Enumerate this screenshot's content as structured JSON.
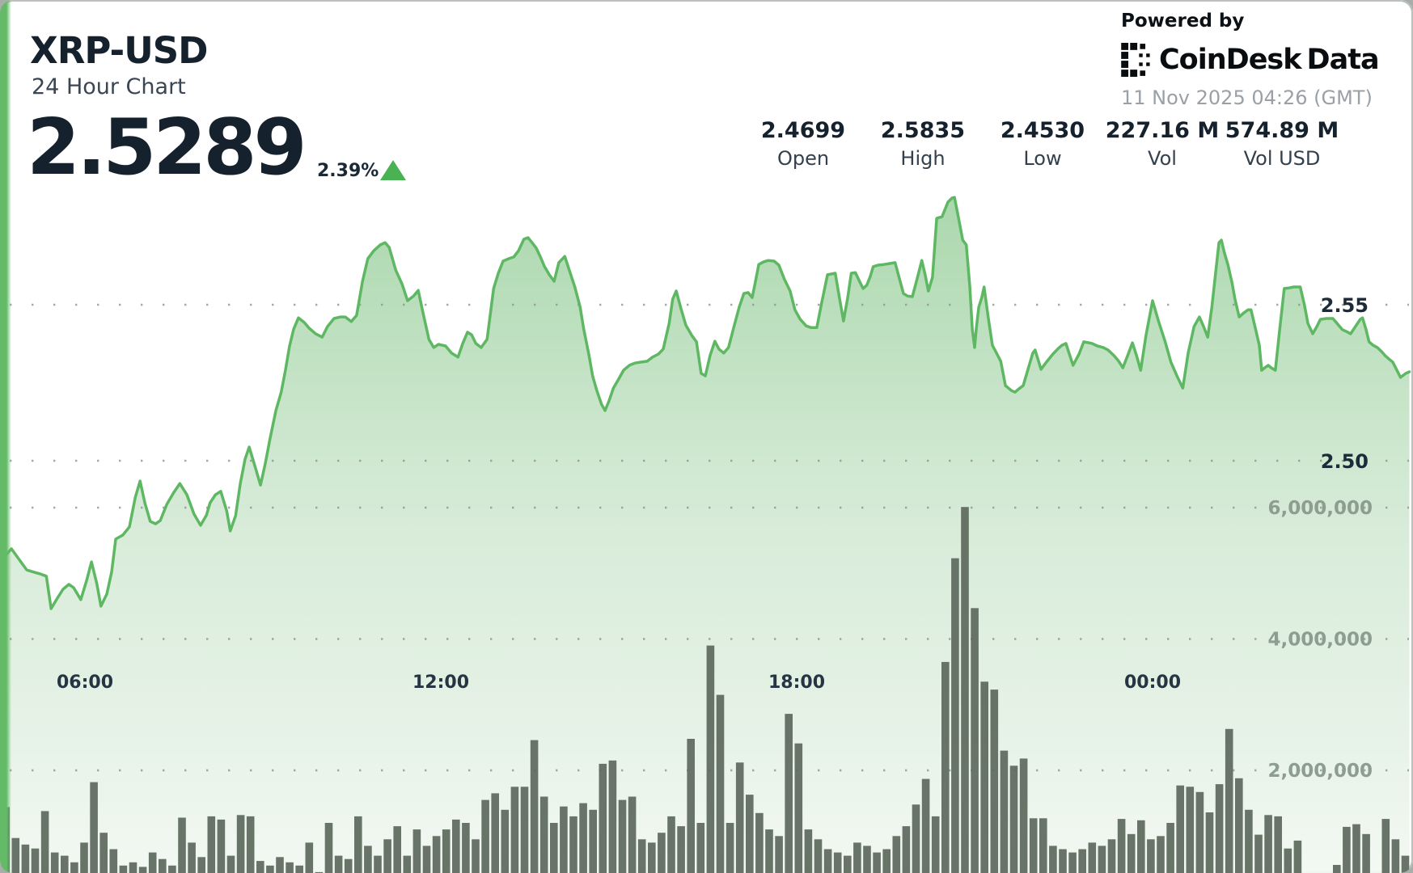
{
  "header": {
    "symbol": "XRP-USD",
    "subtitle": "24 Hour Chart",
    "price": "2.5289",
    "change_pct": "2.39%"
  },
  "stats": [
    {
      "value": "2.4699",
      "label": "Open"
    },
    {
      "value": "2.5835",
      "label": "High"
    },
    {
      "value": "2.4530",
      "label": "Low"
    },
    {
      "value": "227.16 M",
      "label": "Vol"
    },
    {
      "value": "574.89 M",
      "label": "Vol USD"
    }
  ],
  "powered_by": {
    "prefix": "Powered by",
    "brand": "CoinDesk",
    "brand2": "Data",
    "timestamp": "11 Nov 2025 04:26 (GMT)"
  },
  "colors": {
    "accent_green": "#63bb67",
    "line_green": "#5eb762",
    "fill_top": "#a0d3a3",
    "fill_mid": "#cfe7d0",
    "fill_bottom": "#f2f8f2",
    "bar_gray": "#5d685c",
    "price_tick": "#1d2b39",
    "vol_tick": "#8d9d8f",
    "time_tick": "#263544",
    "dot_grid": "#8b968b",
    "change_green": "#4bb254"
  },
  "chart_data": {
    "type": "area+bar",
    "title": "XRP-USD 24 Hour Chart",
    "price": {
      "type": "area",
      "x_unit": "hour_of_day_decimal_gmt",
      "open": 2.4699,
      "high": 2.5835,
      "low": 2.453,
      "last": 2.5289,
      "yticks": [
        2.55,
        2.5
      ],
      "points": [
        [
          4.68,
          2.47
        ],
        [
          4.76,
          2.4718
        ],
        [
          4.87,
          2.4689
        ],
        [
          5.02,
          2.465
        ],
        [
          5.14,
          2.4643
        ],
        [
          5.25,
          2.4637
        ],
        [
          5.35,
          2.463
        ],
        [
          5.43,
          2.4526
        ],
        [
          5.52,
          2.4555
        ],
        [
          5.63,
          2.4588
        ],
        [
          5.73,
          2.4604
        ],
        [
          5.81,
          2.4593
        ],
        [
          5.93,
          2.4555
        ],
        [
          6.03,
          2.4617
        ],
        [
          6.11,
          2.4676
        ],
        [
          6.2,
          2.4606
        ],
        [
          6.27,
          2.4534
        ],
        [
          6.37,
          2.4573
        ],
        [
          6.45,
          2.4643
        ],
        [
          6.52,
          2.4749
        ],
        [
          6.64,
          2.4762
        ],
        [
          6.75,
          2.4788
        ],
        [
          6.85,
          2.4883
        ],
        [
          6.93,
          2.4935
        ],
        [
          7.01,
          2.4865
        ],
        [
          7.1,
          2.4806
        ],
        [
          7.19,
          2.4798
        ],
        [
          7.27,
          2.4808
        ],
        [
          7.38,
          2.486
        ],
        [
          7.49,
          2.4896
        ],
        [
          7.6,
          2.4927
        ],
        [
          7.72,
          2.4891
        ],
        [
          7.84,
          2.4829
        ],
        [
          7.95,
          2.4793
        ],
        [
          8.05,
          2.4826
        ],
        [
          8.11,
          2.4865
        ],
        [
          8.2,
          2.4891
        ],
        [
          8.29,
          2.4902
        ],
        [
          8.39,
          2.4839
        ],
        [
          8.45,
          2.4775
        ],
        [
          8.54,
          2.4824
        ],
        [
          8.62,
          2.4927
        ],
        [
          8.7,
          2.5005
        ],
        [
          8.77,
          2.5044
        ],
        [
          8.86,
          2.4987
        ],
        [
          8.96,
          2.4922
        ],
        [
          9.04,
          2.499
        ],
        [
          9.12,
          2.507
        ],
        [
          9.22,
          2.5161
        ],
        [
          9.31,
          2.522
        ],
        [
          9.38,
          2.529
        ],
        [
          9.45,
          2.5368
        ],
        [
          9.52,
          2.5422
        ],
        [
          9.6,
          2.5458
        ],
        [
          9.7,
          2.5443
        ],
        [
          9.78,
          2.5425
        ],
        [
          9.89,
          2.5407
        ],
        [
          10.0,
          2.5396
        ],
        [
          10.09,
          2.543
        ],
        [
          10.2,
          2.5456
        ],
        [
          10.31,
          2.5461
        ],
        [
          10.39,
          2.5461
        ],
        [
          10.49,
          2.5446
        ],
        [
          10.58,
          2.5466
        ],
        [
          10.68,
          2.5575
        ],
        [
          10.77,
          2.5648
        ],
        [
          10.87,
          2.5673
        ],
        [
          10.98,
          2.5692
        ],
        [
          11.06,
          2.5699
        ],
        [
          11.13,
          2.5684
        ],
        [
          11.24,
          2.5611
        ],
        [
          11.35,
          2.5565
        ],
        [
          11.44,
          2.5513
        ],
        [
          11.54,
          2.5528
        ],
        [
          11.62,
          2.5546
        ],
        [
          11.71,
          2.5466
        ],
        [
          11.8,
          2.5389
        ],
        [
          11.88,
          2.5363
        ],
        [
          11.96,
          2.5373
        ],
        [
          12.08,
          2.5368
        ],
        [
          12.18,
          2.5345
        ],
        [
          12.29,
          2.5332
        ],
        [
          12.37,
          2.5376
        ],
        [
          12.45,
          2.5412
        ],
        [
          12.52,
          2.5404
        ],
        [
          12.59,
          2.5376
        ],
        [
          12.68,
          2.5363
        ],
        [
          12.78,
          2.5389
        ],
        [
          12.89,
          2.5552
        ],
        [
          12.97,
          2.5601
        ],
        [
          13.05,
          2.564
        ],
        [
          13.15,
          2.5648
        ],
        [
          13.23,
          2.5653
        ],
        [
          13.31,
          2.5673
        ],
        [
          13.4,
          2.571
        ],
        [
          13.47,
          2.5715
        ],
        [
          13.54,
          2.5699
        ],
        [
          13.61,
          2.5681
        ],
        [
          13.68,
          2.5653
        ],
        [
          13.75,
          2.5622
        ],
        [
          13.83,
          2.5596
        ],
        [
          13.91,
          2.5575
        ],
        [
          13.99,
          2.5635
        ],
        [
          14.09,
          2.5655
        ],
        [
          14.17,
          2.5609
        ],
        [
          14.26,
          2.5557
        ],
        [
          14.35,
          2.5492
        ],
        [
          14.41,
          2.5422
        ],
        [
          14.5,
          2.5337
        ],
        [
          14.56,
          2.5272
        ],
        [
          14.63,
          2.5225
        ],
        [
          14.71,
          2.5181
        ],
        [
          14.77,
          2.5161
        ],
        [
          14.84,
          2.5194
        ],
        [
          14.91,
          2.5233
        ],
        [
          14.99,
          2.5259
        ],
        [
          15.08,
          2.529
        ],
        [
          15.18,
          2.5306
        ],
        [
          15.27,
          2.5313
        ],
        [
          15.37,
          2.5316
        ],
        [
          15.48,
          2.5319
        ],
        [
          15.57,
          2.5332
        ],
        [
          15.67,
          2.5342
        ],
        [
          15.75,
          2.5358
        ],
        [
          15.85,
          2.544
        ],
        [
          15.91,
          2.5518
        ],
        [
          15.97,
          2.5544
        ],
        [
          16.05,
          2.5487
        ],
        [
          16.13,
          2.5435
        ],
        [
          16.23,
          2.5402
        ],
        [
          16.31,
          2.5381
        ],
        [
          16.39,
          2.528
        ],
        [
          16.46,
          2.5272
        ],
        [
          16.54,
          2.5337
        ],
        [
          16.62,
          2.5383
        ],
        [
          16.69,
          2.5358
        ],
        [
          16.77,
          2.5345
        ],
        [
          16.85,
          2.5363
        ],
        [
          16.95,
          2.5435
        ],
        [
          17.03,
          2.5492
        ],
        [
          17.11,
          2.5536
        ],
        [
          17.18,
          2.5539
        ],
        [
          17.25,
          2.5523
        ],
        [
          17.3,
          2.557
        ],
        [
          17.36,
          2.5629
        ],
        [
          17.44,
          2.5637
        ],
        [
          17.52,
          2.5642
        ],
        [
          17.62,
          2.564
        ],
        [
          17.7,
          2.5627
        ],
        [
          17.79,
          2.5583
        ],
        [
          17.89,
          2.5544
        ],
        [
          17.97,
          2.5484
        ],
        [
          18.06,
          2.5453
        ],
        [
          18.16,
          2.5432
        ],
        [
          18.24,
          2.5427
        ],
        [
          18.34,
          2.5427
        ],
        [
          18.42,
          2.5505
        ],
        [
          18.52,
          2.5596
        ],
        [
          18.65,
          2.5601
        ],
        [
          18.72,
          2.5523
        ],
        [
          18.79,
          2.5448
        ],
        [
          18.86,
          2.5523
        ],
        [
          18.92,
          2.5601
        ],
        [
          18.99,
          2.5603
        ],
        [
          19.06,
          2.5575
        ],
        [
          19.12,
          2.5552
        ],
        [
          19.18,
          2.5562
        ],
        [
          19.24,
          2.559
        ],
        [
          19.29,
          2.5622
        ],
        [
          19.37,
          2.5627
        ],
        [
          19.47,
          2.5629
        ],
        [
          19.57,
          2.5632
        ],
        [
          19.66,
          2.5635
        ],
        [
          19.73,
          2.5585
        ],
        [
          19.8,
          2.5536
        ],
        [
          19.87,
          2.5528
        ],
        [
          19.95,
          2.5526
        ],
        [
          20.03,
          2.5583
        ],
        [
          20.11,
          2.5642
        ],
        [
          20.17,
          2.5593
        ],
        [
          20.22,
          2.5544
        ],
        [
          20.29,
          2.5588
        ],
        [
          20.36,
          2.5777
        ],
        [
          20.45,
          2.5782
        ],
        [
          20.55,
          2.5829
        ],
        [
          20.62,
          2.5842
        ],
        [
          20.66,
          2.5844
        ],
        [
          20.73,
          2.5777
        ],
        [
          20.8,
          2.5707
        ],
        [
          20.86,
          2.5692
        ],
        [
          20.92,
          2.5557
        ],
        [
          20.96,
          2.5422
        ],
        [
          21.0,
          2.5363
        ],
        [
          21.03,
          2.5427
        ],
        [
          21.07,
          2.5492
        ],
        [
          21.12,
          2.5523
        ],
        [
          21.16,
          2.5557
        ],
        [
          21.23,
          2.5458
        ],
        [
          21.3,
          2.537
        ],
        [
          21.37,
          2.5345
        ],
        [
          21.44,
          2.5319
        ],
        [
          21.52,
          2.5241
        ],
        [
          21.62,
          2.5225
        ],
        [
          21.68,
          2.522
        ],
        [
          21.75,
          2.5231
        ],
        [
          21.82,
          2.5241
        ],
        [
          21.9,
          2.5293
        ],
        [
          21.98,
          2.5345
        ],
        [
          22.02,
          2.5355
        ],
        [
          22.12,
          2.5293
        ],
        [
          22.21,
          2.5316
        ],
        [
          22.32,
          2.5342
        ],
        [
          22.4,
          2.5358
        ],
        [
          22.47,
          2.537
        ],
        [
          22.54,
          2.5376
        ],
        [
          22.66,
          2.5306
        ],
        [
          22.76,
          2.5342
        ],
        [
          22.84,
          2.5381
        ],
        [
          22.98,
          2.5376
        ],
        [
          23.07,
          2.5368
        ],
        [
          23.17,
          2.5363
        ],
        [
          23.25,
          2.5355
        ],
        [
          23.35,
          2.5337
        ],
        [
          23.43,
          2.5319
        ],
        [
          23.5,
          2.5298
        ],
        [
          23.58,
          2.5337
        ],
        [
          23.66,
          2.5378
        ],
        [
          23.73,
          2.5337
        ],
        [
          23.8,
          2.529
        ],
        [
          23.89,
          2.5402
        ],
        [
          24.0,
          2.5513
        ],
        [
          24.1,
          2.5448
        ],
        [
          24.21,
          2.5383
        ],
        [
          24.31,
          2.5316
        ],
        [
          24.41,
          2.5272
        ],
        [
          24.51,
          2.5233
        ],
        [
          24.6,
          2.5345
        ],
        [
          24.7,
          2.543
        ],
        [
          24.79,
          2.5461
        ],
        [
          24.86,
          2.543
        ],
        [
          24.93,
          2.5396
        ],
        [
          25.0,
          2.5492
        ],
        [
          25.06,
          2.5596
        ],
        [
          25.12,
          2.5699
        ],
        [
          25.16,
          2.5707
        ],
        [
          25.21,
          2.5668
        ],
        [
          25.27,
          2.5629
        ],
        [
          25.34,
          2.557
        ],
        [
          25.39,
          2.5518
        ],
        [
          25.46,
          2.5461
        ],
        [
          25.54,
          2.5474
        ],
        [
          25.61,
          2.5484
        ],
        [
          25.66,
          2.5484
        ],
        [
          25.73,
          2.5427
        ],
        [
          25.8,
          2.537
        ],
        [
          25.84,
          2.529
        ],
        [
          25.89,
          2.5298
        ],
        [
          25.95,
          2.5306
        ],
        [
          26.0,
          2.5298
        ],
        [
          26.07,
          2.529
        ],
        [
          26.14,
          2.5414
        ],
        [
          26.22,
          2.5552
        ],
        [
          26.3,
          2.5554
        ],
        [
          26.38,
          2.5557
        ],
        [
          26.49,
          2.5557
        ],
        [
          26.56,
          2.55
        ],
        [
          26.62,
          2.544
        ],
        [
          26.7,
          2.5407
        ],
        [
          26.77,
          2.543
        ],
        [
          26.83,
          2.5453
        ],
        [
          26.93,
          2.5456
        ],
        [
          27.04,
          2.5456
        ],
        [
          27.12,
          2.5438
        ],
        [
          27.2,
          2.542
        ],
        [
          27.27,
          2.5414
        ],
        [
          27.34,
          2.5407
        ],
        [
          27.42,
          2.543
        ],
        [
          27.5,
          2.5453
        ],
        [
          27.54,
          2.5458
        ],
        [
          27.6,
          2.542
        ],
        [
          27.65,
          2.5381
        ],
        [
          27.72,
          2.537
        ],
        [
          27.79,
          2.5363
        ],
        [
          27.86,
          2.535
        ],
        [
          27.92,
          2.5337
        ],
        [
          27.98,
          2.5327
        ],
        [
          28.05,
          2.5316
        ],
        [
          28.12,
          2.529
        ],
        [
          28.18,
          2.5267
        ],
        [
          28.27,
          2.528
        ],
        [
          28.33,
          2.5285
        ]
      ]
    },
    "volume": {
      "type": "bar",
      "unit": "XRP",
      "start_hour": 4.667,
      "step_hours": 0.165,
      "yticks_millions": [
        6,
        4,
        2
      ],
      "ytick_labels": [
        "6,000,000",
        "4,000,000",
        "2,000,000"
      ],
      "values_millions": [
        1.44,
        0.97,
        0.87,
        0.81,
        1.38,
        0.75,
        0.7,
        0.6,
        0.9,
        1.82,
        1.05,
        0.8,
        0.55,
        0.6,
        0.53,
        0.75,
        0.65,
        0.55,
        1.28,
        0.9,
        0.68,
        1.3,
        1.25,
        0.7,
        1.32,
        1.3,
        0.62,
        0.55,
        0.68,
        0.6,
        0.55,
        0.9,
        0.45,
        1.2,
        0.7,
        0.65,
        1.3,
        0.85,
        0.7,
        0.95,
        1.15,
        0.7,
        1.1,
        0.85,
        1.0,
        1.1,
        1.25,
        1.2,
        0.95,
        1.55,
        1.65,
        1.4,
        1.75,
        1.75,
        2.46,
        1.6,
        1.2,
        1.45,
        1.3,
        1.5,
        1.4,
        2.1,
        2.15,
        1.55,
        1.6,
        0.95,
        0.9,
        1.05,
        1.3,
        1.15,
        2.48,
        1.2,
        3.9,
        3.15,
        1.2,
        2.12,
        1.63,
        1.35,
        1.1,
        1.0,
        2.86,
        2.41,
        1.1,
        0.95,
        0.8,
        0.75,
        0.7,
        0.9,
        0.85,
        0.75,
        0.8,
        1.0,
        1.15,
        1.48,
        1.87,
        1.3,
        3.65,
        5.23,
        6.01,
        4.47,
        3.35,
        3.23,
        2.3,
        2.07,
        2.18,
        1.27,
        1.27,
        0.85,
        0.8,
        0.75,
        0.8,
        0.9,
        0.85,
        0.95,
        1.26,
        1.03,
        1.24,
        0.95,
        1.0,
        1.2,
        1.77,
        1.75,
        1.67,
        1.36,
        1.79,
        2.63,
        1.88,
        1.4,
        1.02,
        1.32,
        1.3,
        0.81,
        0.93,
        0.25,
        0.22,
        0.4,
        0.56,
        1.14,
        1.18,
        1.03,
        0.43,
        1.26,
        0.95,
        0.7
      ]
    },
    "time_axis": {
      "ticks": [
        {
          "h": 6,
          "label": "06:00"
        },
        {
          "h": 12,
          "label": "12:00"
        },
        {
          "h": 18,
          "label": "18:00"
        },
        {
          "h": 24,
          "label": "00:00"
        }
      ]
    },
    "grid": "dotted",
    "legend_position": "none"
  }
}
